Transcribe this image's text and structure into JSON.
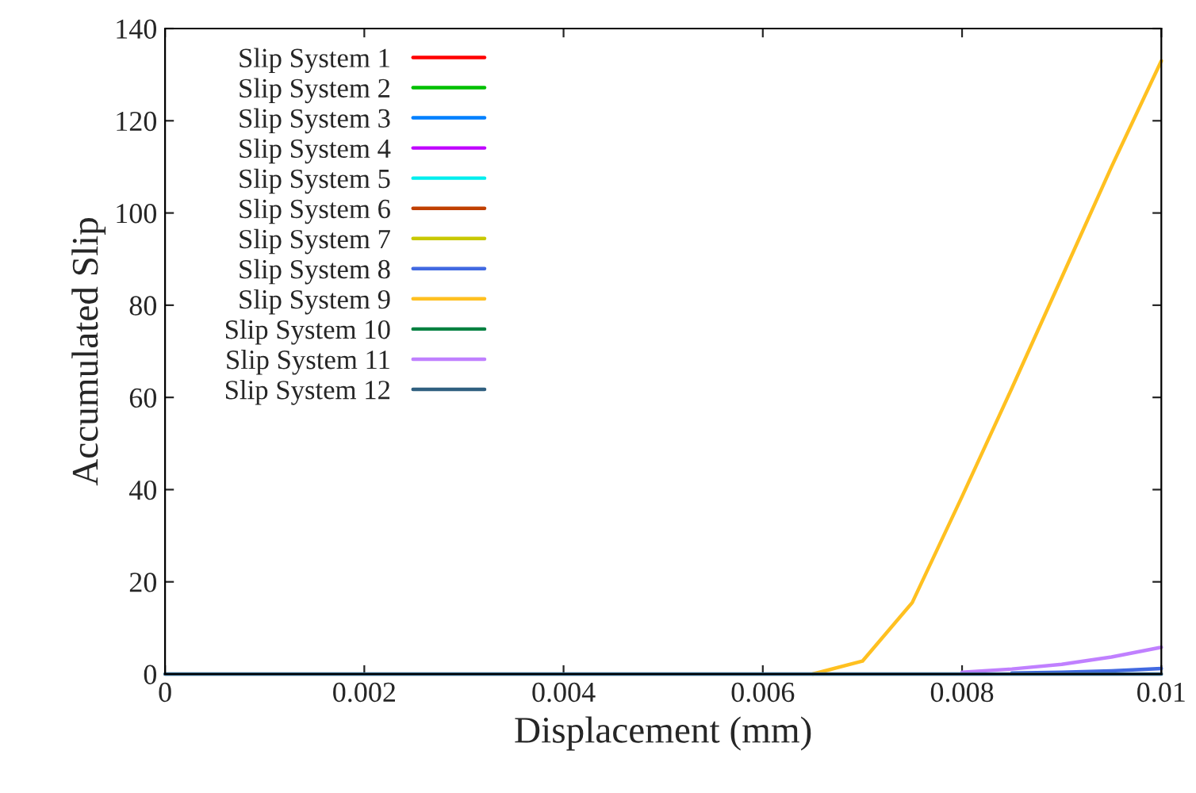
{
  "chart_data": {
    "type": "line",
    "xlabel": "Displacement (mm)",
    "ylabel": "Accumulated Slip",
    "x": [
      0,
      0.0005,
      0.001,
      0.0015,
      0.002,
      0.0025,
      0.003,
      0.0035,
      0.004,
      0.0045,
      0.005,
      0.0055,
      0.006,
      0.0065,
      0.007,
      0.0075,
      0.008,
      0.0085,
      0.009,
      0.0095,
      0.01
    ],
    "series": [
      {
        "name": "Slip System 1",
        "color": "#ff0000",
        "values": [
          null,
          null,
          null,
          null,
          null,
          null,
          null,
          null,
          null,
          null,
          null,
          null,
          null,
          null,
          null,
          null,
          null,
          null,
          null,
          null,
          null
        ]
      },
      {
        "name": "Slip System 2",
        "color": "#00c000",
        "values": [
          null,
          null,
          null,
          null,
          null,
          null,
          null,
          null,
          null,
          null,
          null,
          null,
          null,
          null,
          null,
          null,
          null,
          null,
          null,
          null,
          null
        ]
      },
      {
        "name": "Slip System 3",
        "color": "#0080ff",
        "values": [
          null,
          null,
          null,
          null,
          null,
          null,
          null,
          null,
          null,
          null,
          null,
          null,
          null,
          null,
          null,
          null,
          null,
          null,
          null,
          null,
          null
        ]
      },
      {
        "name": "Slip System 4",
        "color": "#c000ff",
        "values": [
          null,
          null,
          null,
          null,
          null,
          null,
          null,
          null,
          null,
          null,
          null,
          null,
          null,
          null,
          null,
          null,
          null,
          null,
          null,
          null,
          null
        ]
      },
      {
        "name": "Slip System 5",
        "color": "#00eeee",
        "values": [
          null,
          null,
          null,
          null,
          null,
          null,
          null,
          null,
          null,
          null,
          null,
          null,
          null,
          null,
          null,
          null,
          null,
          null,
          null,
          null,
          null
        ]
      },
      {
        "name": "Slip System 6",
        "color": "#c04000",
        "values": [
          null,
          null,
          null,
          null,
          null,
          null,
          null,
          null,
          null,
          null,
          null,
          null,
          null,
          null,
          null,
          null,
          null,
          null,
          null,
          null,
          null
        ]
      },
      {
        "name": "Slip System 7",
        "color": "#c8c800",
        "values": [
          null,
          null,
          null,
          null,
          null,
          null,
          null,
          null,
          null,
          null,
          null,
          null,
          null,
          null,
          null,
          null,
          null,
          null,
          null,
          null,
          null
        ]
      },
      {
        "name": "Slip System 8",
        "color": "#4169e1",
        "values": [
          null,
          null,
          null,
          null,
          null,
          null,
          null,
          null,
          null,
          null,
          null,
          null,
          null,
          null,
          null,
          null,
          null,
          0.2,
          0.4,
          0.7,
          1.2
        ]
      },
      {
        "name": "Slip System 9",
        "color": "#ffc020",
        "values": [
          null,
          null,
          null,
          null,
          null,
          null,
          null,
          null,
          null,
          null,
          null,
          null,
          null,
          0,
          2.8,
          15.5,
          38.5,
          62,
          86,
          110,
          133
        ]
      },
      {
        "name": "Slip System 10",
        "color": "#008040",
        "values": [
          null,
          null,
          null,
          null,
          null,
          null,
          null,
          null,
          null,
          null,
          null,
          null,
          null,
          null,
          null,
          null,
          null,
          null,
          null,
          null,
          null
        ]
      },
      {
        "name": "Slip System 11",
        "color": "#c080ff",
        "values": [
          null,
          null,
          null,
          null,
          null,
          null,
          null,
          null,
          null,
          null,
          null,
          null,
          null,
          null,
          null,
          null,
          0.4,
          1.1,
          2.1,
          3.7,
          5.8
        ]
      },
      {
        "name": "Slip System 12",
        "color": "#306080",
        "values": [
          0,
          0,
          0,
          0,
          0,
          0,
          0,
          0,
          0,
          0,
          0,
          0,
          0,
          0,
          0,
          0,
          0,
          0,
          0,
          0,
          0
        ]
      }
    ],
    "xlim": [
      0,
      0.01
    ],
    "xticks": [
      0,
      0.002,
      0.004,
      0.006,
      0.008,
      0.01
    ],
    "ylim": [
      0,
      140
    ],
    "yticks": [
      0,
      20,
      40,
      60,
      80,
      100,
      120,
      140
    ],
    "grid": false,
    "legend": "top left",
    "marker": "none",
    "line_style": "solid"
  }
}
